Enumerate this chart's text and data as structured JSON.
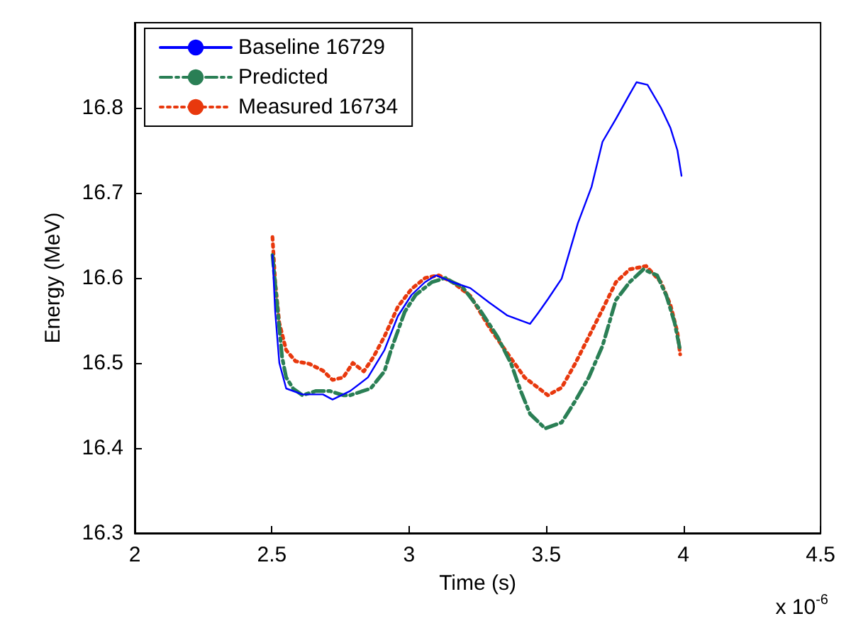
{
  "chart_data": {
    "type": "line",
    "xlabel": "Time (s)",
    "ylabel": "Energy (MeV)",
    "annotations": [
      "x 10$^{-6}$"
    ],
    "xlim": [
      2,
      4.5
    ],
    "xticks": [
      2,
      2.5,
      3,
      3.5,
      4,
      4.5
    ],
    "ylim": [
      16.3,
      16.9
    ],
    "yticks": [
      16.3,
      16.4,
      16.5,
      16.6,
      16.7,
      16.8
    ],
    "grid": false,
    "legend": "top left",
    "marker": "none",
    "series": [
      {
        "name": "Baseline 16729",
        "color": "#0000ff",
        "line_style": "solid",
        "x": [
          2.502,
          2.512,
          2.527,
          2.552,
          2.611,
          2.686,
          2.721,
          2.785,
          2.85,
          2.91,
          2.959,
          3.009,
          3.058,
          3.098,
          3.158,
          3.223,
          3.292,
          3.357,
          3.441,
          3.471,
          3.506,
          3.556,
          3.615,
          3.665,
          3.705,
          3.754,
          3.804,
          3.829,
          3.869,
          3.918,
          3.953,
          3.978,
          3.993
        ],
        "values": [
          16.627,
          16.56,
          16.5,
          16.47,
          16.463,
          16.463,
          16.457,
          16.467,
          16.483,
          16.515,
          16.555,
          16.58,
          16.595,
          16.603,
          16.595,
          16.588,
          16.571,
          16.556,
          16.546,
          16.559,
          16.575,
          16.599,
          16.664,
          16.707,
          16.76,
          16.787,
          16.816,
          16.83,
          16.827,
          16.8,
          16.776,
          16.75,
          16.72
        ]
      },
      {
        "name": "Predicted",
        "color": "#2a7f55",
        "line_style": "dashed",
        "x": [
          2.502,
          2.537,
          2.552,
          2.577,
          2.611,
          2.661,
          2.711,
          2.76,
          2.785,
          2.86,
          2.91,
          2.934,
          2.984,
          3.024,
          3.083,
          3.133,
          3.158,
          3.193,
          3.257,
          3.322,
          3.372,
          3.407,
          3.441,
          3.496,
          3.556,
          3.605,
          3.655,
          3.705,
          3.754,
          3.804,
          3.854,
          3.904,
          3.938,
          3.968,
          3.988
        ],
        "values": [
          16.627,
          16.507,
          16.483,
          16.47,
          16.462,
          16.467,
          16.467,
          16.462,
          16.462,
          16.47,
          16.49,
          16.515,
          16.56,
          16.58,
          16.595,
          16.6,
          16.595,
          16.59,
          16.563,
          16.531,
          16.499,
          16.467,
          16.44,
          16.423,
          16.43,
          16.455,
          16.483,
          16.52,
          16.574,
          16.595,
          16.61,
          16.603,
          16.579,
          16.547,
          16.515
        ]
      },
      {
        "name": "Measured 16734",
        "color": "#e8380d",
        "line_style": "dotted",
        "x": [
          2.502,
          2.512,
          2.527,
          2.552,
          2.586,
          2.636,
          2.686,
          2.721,
          2.76,
          2.795,
          2.835,
          2.87,
          2.91,
          2.959,
          3.009,
          3.059,
          3.108,
          3.158,
          3.223,
          3.292,
          3.357,
          3.421,
          3.506,
          3.556,
          3.605,
          3.655,
          3.705,
          3.754,
          3.804,
          3.864,
          3.918,
          3.953,
          3.978,
          3.988
        ],
        "values": [
          16.648,
          16.595,
          16.547,
          16.515,
          16.502,
          16.499,
          16.491,
          16.48,
          16.483,
          16.5,
          16.49,
          16.507,
          16.531,
          16.566,
          16.587,
          16.6,
          16.603,
          16.595,
          16.579,
          16.542,
          16.512,
          16.483,
          16.462,
          16.471,
          16.499,
          16.531,
          16.563,
          16.595,
          16.61,
          16.614,
          16.595,
          16.568,
          16.536,
          16.51
        ]
      }
    ]
  }
}
